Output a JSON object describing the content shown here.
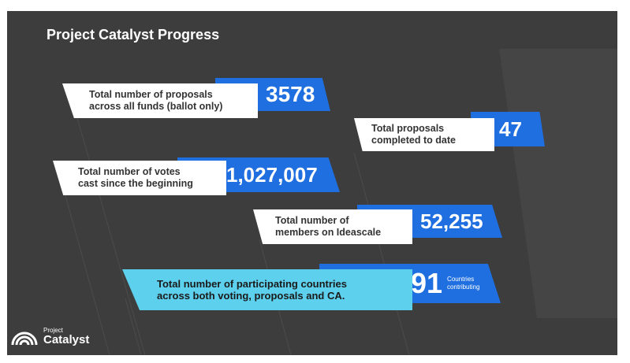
{
  "slide": {
    "title": "Project Catalyst Progress"
  },
  "stats": [
    {
      "label_line1": "Total number of proposals",
      "label_line2": "across all funds (ballot only)",
      "value": "3578"
    },
    {
      "label_line1": "Total proposals",
      "label_line2": "completed to date",
      "value": "47"
    },
    {
      "label_line1": "Total number of votes",
      "label_line2": "cast since the beginning",
      "value": "1,027,007"
    },
    {
      "label_line1": "Total number of",
      "label_line2": "members on Ideascale",
      "value": "52,255"
    },
    {
      "label_line1": "Total number of participating countries",
      "label_line2": "across both voting, proposals and CA.",
      "value": "91",
      "unit_line1": "Countries",
      "unit_line2": "contributing"
    }
  ],
  "logo": {
    "small": "Project",
    "big": "Catalyst",
    "icon": "rainbow-arcs-icon"
  },
  "colors": {
    "background": "#3d3d3d",
    "accent_blue": "#1f6fe0",
    "accent_cyan": "#5dd0ed",
    "label_white": "#ffffff"
  }
}
